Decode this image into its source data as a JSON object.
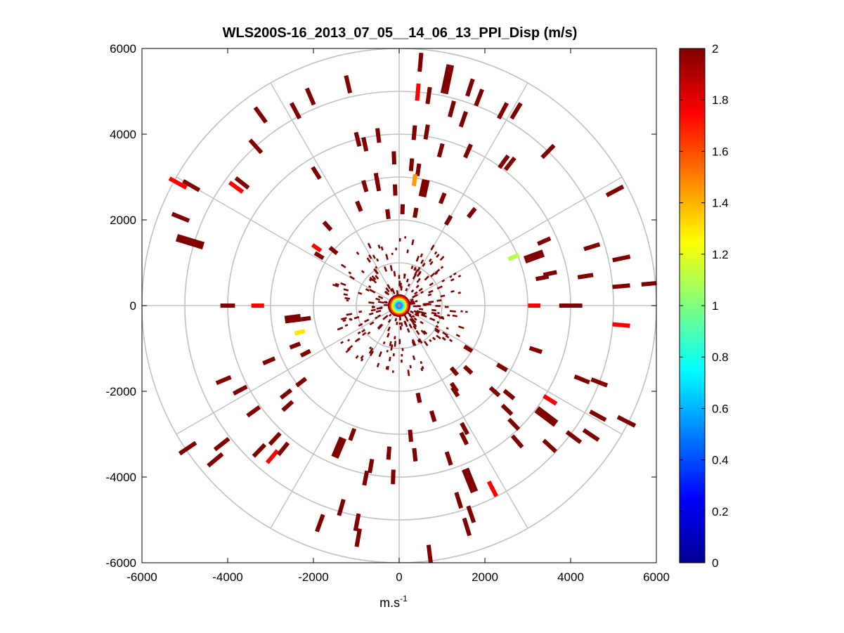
{
  "chart_data": {
    "type": "scatter",
    "subtype": "polar-ppi",
    "title": "WLS200S-16_2013_07_05__14_06_13_PPI_Disp (m/s)",
    "xlabel_base": "m.s",
    "xlabel_sup": "-1",
    "ylabel": "",
    "xlim": [
      -6000,
      6000
    ],
    "ylim": [
      -6000,
      6000
    ],
    "x_ticks": [
      -6000,
      -4000,
      -2000,
      0,
      2000,
      4000,
      6000
    ],
    "y_ticks": [
      6000,
      4000,
      2000,
      0,
      -2000,
      -4000,
      -6000
    ],
    "x_tick_labels": [
      "-6000",
      "-4000",
      "-2000",
      "0",
      "2000",
      "4000",
      "6000"
    ],
    "y_tick_labels": [
      "6000",
      "4000",
      "2000",
      "0",
      "-2000",
      "-4000",
      "-6000"
    ],
    "range_rings": [
      1000,
      2000,
      3000,
      4000,
      5000,
      6000
    ],
    "spokes_deg": [
      0,
      30,
      60,
      90,
      120,
      150,
      180,
      210,
      240,
      270,
      300,
      330
    ],
    "colorbar": {
      "min": 0,
      "max": 2,
      "ticks": [
        0,
        0.2,
        0.4,
        0.6,
        0.8,
        1,
        1.2,
        1.4,
        1.6,
        1.8,
        2
      ],
      "tick_labels": [
        "0",
        "0.2",
        "0.4",
        "0.6",
        "0.8",
        "1",
        "1.2",
        "1.4",
        "1.6",
        "1.8",
        "2"
      ],
      "colormap": "jet"
    },
    "points": [
      {
        "r": 5000,
        "az": 5,
        "v": 1.75
      },
      {
        "r": 4950,
        "az": 8,
        "v": 2
      },
      {
        "r": 5700,
        "az": 5,
        "v": 2
      },
      {
        "r": 5400,
        "az": 12,
        "v": 2
      },
      {
        "r": 5350,
        "az": 18,
        "v": 2
      },
      {
        "r": 5200,
        "az": 21,
        "v": 2
      },
      {
        "r": 5150,
        "az": 28,
        "v": 2
      },
      {
        "r": 5300,
        "az": 31,
        "v": 2
      },
      {
        "r": 4750,
        "az": 15,
        "v": 2
      },
      {
        "r": 4600,
        "az": 19,
        "v": 2
      },
      {
        "r": 5300,
        "az": -13,
        "v": 2
      },
      {
        "r": 5300,
        "az": -23,
        "v": 2
      },
      {
        "r": 5150,
        "az": -28,
        "v": 2
      },
      {
        "r": 5500,
        "az": -36,
        "v": 2
      },
      {
        "r": 5000,
        "az": -42,
        "v": 2
      },
      {
        "r": 5900,
        "az": -61,
        "v": 1.75
      },
      {
        "r": 5600,
        "az": -60,
        "v": 2
      },
      {
        "r": 4700,
        "az": -54,
        "v": 1.75
      },
      {
        "r": 4650,
        "az": -52,
        "v": 2
      },
      {
        "r": 5500,
        "az": -68,
        "v": 2
      },
      {
        "r": 5100,
        "az": -73,
        "v": 2
      },
      {
        "r": 4050,
        "az": 5,
        "v": 2
      },
      {
        "r": 4100,
        "az": 9,
        "v": 2
      },
      {
        "r": 4000,
        "az": -7,
        "v": 2
      },
      {
        "r": 4000,
        "az": -14,
        "v": 2
      },
      {
        "r": 3850,
        "az": -12,
        "v": 2
      },
      {
        "r": 3750,
        "az": 15,
        "v": 2
      },
      {
        "r": 3950,
        "az": 24,
        "v": 2
      },
      {
        "r": 4150,
        "az": 36,
        "v": 2
      },
      {
        "r": 4200,
        "az": 38,
        "v": 2
      },
      {
        "r": 5000,
        "az": 44,
        "v": 2
      },
      {
        "r": 5700,
        "az": 62,
        "v": 2
      },
      {
        "r": 3650,
        "az": -32,
        "v": 2
      },
      {
        "r": 3450,
        "az": -2,
        "v": 2
      },
      {
        "r": 3300,
        "az": 5,
        "v": 2
      },
      {
        "r": 3200,
        "az": 8,
        "v": 2
      },
      {
        "r": 2950,
        "az": 7,
        "v": 1.45
      },
      {
        "r": 2800,
        "az": 12,
        "v": 2
      },
      {
        "r": 2850,
        "az": -10,
        "v": 2
      },
      {
        "r": 2700,
        "az": -2,
        "v": 2
      },
      {
        "r": 3000,
        "az": -10,
        "v": 2
      },
      {
        "r": 2900,
        "az": -16,
        "v": 2
      },
      {
        "r": 2500,
        "az": -22,
        "v": 2
      },
      {
        "r": 2700,
        "az": 22,
        "v": 2
      },
      {
        "r": 2750,
        "az": 38,
        "v": 2
      },
      {
        "r": 2300,
        "az": 30,
        "v": 2
      },
      {
        "r": 2250,
        "az": 2,
        "v": 2
      },
      {
        "r": 2200,
        "az": 10,
        "v": 2
      },
      {
        "r": 2150,
        "az": -7,
        "v": 2
      },
      {
        "r": 2500,
        "az": -42,
        "v": 2
      },
      {
        "r": 2350,
        "az": -55,
        "v": 1.75
      },
      {
        "r": 2000,
        "az": -50,
        "v": 2
      },
      {
        "r": 2200,
        "az": -58,
        "v": 2
      },
      {
        "r": 2900,
        "az": 67,
        "v": 1.1
      },
      {
        "r": 3350,
        "az": 70,
        "v": 2
      },
      {
        "r": 3400,
        "az": 79,
        "v": 2
      },
      {
        "r": 3600,
        "az": 78,
        "v": 2
      },
      {
        "r": 3700,
        "az": 66,
        "v": 2
      },
      {
        "r": 3150,
        "az": 90,
        "v": 1.75
      },
      {
        "r": 4100,
        "az": 90,
        "v": 2
      },
      {
        "r": 3900,
        "az": 90,
        "v": 2
      },
      {
        "r": 4400,
        "az": 81,
        "v": 2
      },
      {
        "r": 4700,
        "az": 73,
        "v": 2
      },
      {
        "r": 5300,
        "az": 78,
        "v": 2
      },
      {
        "r": 5200,
        "az": 85,
        "v": 2
      },
      {
        "r": 5900,
        "az": 85,
        "v": 2
      },
      {
        "r": 5200,
        "az": 95,
        "v": 1.75
      },
      {
        "r": 3300,
        "az": -90,
        "v": 1.75
      },
      {
        "r": 4000,
        "az": -90,
        "v": 2
      },
      {
        "r": 2400,
        "az": -105,
        "v": 1.3
      },
      {
        "r": 2200,
        "az": -98,
        "v": 2
      },
      {
        "r": 2500,
        "az": -97,
        "v": 2
      },
      {
        "r": 3300,
        "az": -113,
        "v": 2
      },
      {
        "r": 2600,
        "az": -111,
        "v": 2
      },
      {
        "r": 4450,
        "az": -113,
        "v": 2
      },
      {
        "r": 4200,
        "az": -118,
        "v": 2
      },
      {
        "r": 4200,
        "az": -126,
        "v": 2
      },
      {
        "r": 3350,
        "az": -128,
        "v": 2
      },
      {
        "r": 3500,
        "az": -132,
        "v": 2
      },
      {
        "r": 2900,
        "az": -128,
        "v": 2
      },
      {
        "r": 2450,
        "az": -117,
        "v": 2
      },
      {
        "r": 4600,
        "az": -140,
        "v": 1.75
      },
      {
        "r": 4700,
        "az": -136,
        "v": 2
      },
      {
        "r": 4250,
        "az": -137,
        "v": 2
      },
      {
        "r": 4300,
        "az": -141,
        "v": 2
      },
      {
        "r": 5250,
        "az": -128,
        "v": 2
      },
      {
        "r": 5600,
        "az": -130,
        "v": 2
      },
      {
        "r": 5950,
        "az": -124,
        "v": 2
      },
      {
        "r": 3600,
        "az": -157,
        "v": 2
      },
      {
        "r": 3200,
        "az": -160,
        "v": 2
      },
      {
        "r": 3800,
        "az": -170,
        "v": 2
      },
      {
        "r": 3450,
        "az": -176,
        "v": 2
      },
      {
        "r": 4000,
        "az": -178,
        "v": 2
      },
      {
        "r": 4100,
        "az": -169,
        "v": 2
      },
      {
        "r": 4900,
        "az": -164,
        "v": 2
      },
      {
        "r": 5150,
        "az": -169,
        "v": 2
      },
      {
        "r": 5500,
        "az": -170,
        "v": 2
      },
      {
        "r": 5400,
        "az": -160,
        "v": 2
      },
      {
        "r": 3500,
        "az": 174,
        "v": 2
      },
      {
        "r": 3050,
        "az": 175,
        "v": 2
      },
      {
        "r": 2200,
        "az": 168,
        "v": 2
      },
      {
        "r": 2700,
        "az": 163,
        "v": 2
      },
      {
        "r": 3250,
        "az": 152,
        "v": 2
      },
      {
        "r": 3450,
        "az": 154,
        "v": 2
      },
      {
        "r": 3750,
        "az": 162,
        "v": 2
      },
      {
        "r": 4400,
        "az": 158,
        "v": 2
      },
      {
        "r": 4750,
        "az": 163,
        "v": 2
      },
      {
        "r": 4800,
        "az": 153,
        "v": 1.75
      },
      {
        "r": 5150,
        "az": 161,
        "v": 2
      },
      {
        "r": 5400,
        "az": 163,
        "v": 2
      },
      {
        "r": 5850,
        "az": 173,
        "v": 2
      },
      {
        "r": 2200,
        "az": 133,
        "v": 2
      },
      {
        "r": 2000,
        "az": 140,
        "v": 2
      },
      {
        "r": 2300,
        "az": 146,
        "v": 2
      },
      {
        "r": 2400,
        "az": 147,
        "v": 2
      },
      {
        "r": 3000,
        "az": 132,
        "v": 2
      },
      {
        "r": 3300,
        "az": 129,
        "v": 2
      },
      {
        "r": 3500,
        "az": 134,
        "v": 2
      },
      {
        "r": 3850,
        "az": 136,
        "v": 2
      },
      {
        "r": 4200,
        "az": 139,
        "v": 2
      },
      {
        "r": 4800,
        "az": 133,
        "v": 2
      },
      {
        "r": 4150,
        "az": 122,
        "v": 1.75
      },
      {
        "r": 4300,
        "az": 127,
        "v": 2
      },
      {
        "r": 5100,
        "az": 127,
        "v": 2
      },
      {
        "r": 5400,
        "az": 124,
        "v": 2
      },
      {
        "r": 5300,
        "az": 119,
        "v": 2
      },
      {
        "r": 5950,
        "az": 117,
        "v": 2
      },
      {
        "r": 4600,
        "az": 112,
        "v": 2
      },
      {
        "r": 5000,
        "az": 111,
        "v": 2
      },
      {
        "r": 3350,
        "az": 108,
        "v": 2
      },
      {
        "r": 2800,
        "az": 121,
        "v": 2
      },
      {
        "r": 1900,
        "az": 122,
        "v": 2
      }
    ]
  }
}
